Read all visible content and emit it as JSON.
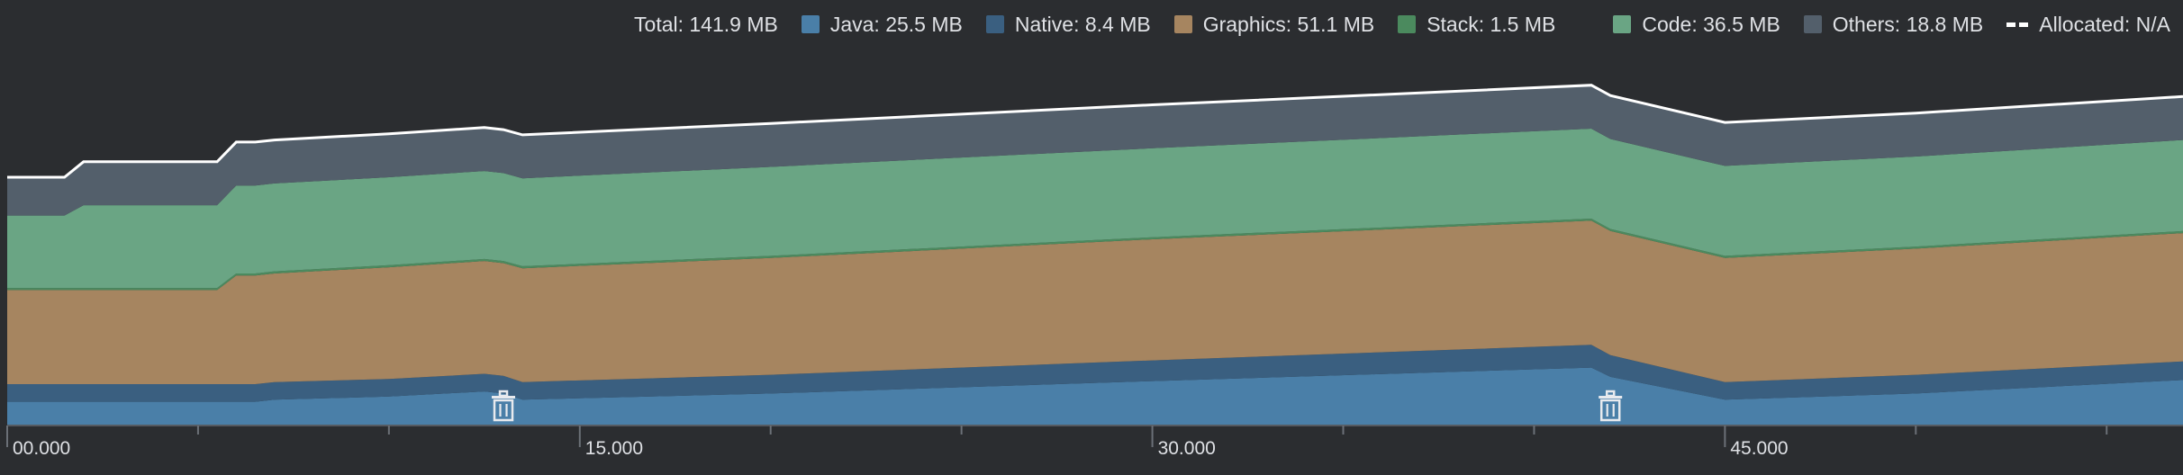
{
  "legend": {
    "total": "Total: 141.9 MB",
    "items": [
      {
        "key": "java",
        "label": "Java: 25.5 MB",
        "color": "#4a7fa8"
      },
      {
        "key": "native",
        "label": "Native: 8.4 MB",
        "color": "#3a5f80"
      },
      {
        "key": "graphics",
        "label": "Graphics: 51.1 MB",
        "color": "#a68560"
      },
      {
        "key": "stack",
        "label": "Stack: 1.5 MB",
        "color": "#4b8a5e"
      },
      {
        "key": "code",
        "label": "Code: 36.5 MB",
        "color": "#6aa584"
      },
      {
        "key": "others",
        "label": "Others: 18.8 MB",
        "color": "#535f6b"
      }
    ],
    "allocated": "Allocated: N/A"
  },
  "chart_data": {
    "type": "area",
    "stacked": true,
    "x_ticks": [
      "00.000",
      "15.000",
      "30.000",
      "45.000"
    ],
    "x_tick_values": [
      0,
      15,
      30,
      45
    ],
    "xlim": [
      0,
      57
    ],
    "x": [
      0,
      1.5,
      2,
      4.5,
      5,
      5.5,
      6,
      6.5,
      7,
      10,
      12.5,
      13,
      13.5,
      20,
      30,
      41.5,
      42,
      45,
      50,
      57
    ],
    "series": [
      {
        "name": "Java",
        "key": "java",
        "color": "#4a7fa8",
        "values": [
          23,
          23,
          23,
          23,
          23,
          23,
          23,
          23,
          25,
          28,
          33,
          31,
          25,
          31,
          43,
          56,
          47,
          25,
          31,
          44
        ]
      },
      {
        "name": "Native",
        "key": "native",
        "color": "#3a5f80",
        "values": [
          17,
          17,
          17,
          17,
          17,
          17,
          17,
          17,
          17,
          17,
          17,
          17,
          17,
          18,
          20,
          22,
          21,
          17,
          18,
          18
        ]
      },
      {
        "name": "Graphics",
        "key": "graphics",
        "color": "#a68560",
        "values": [
          91,
          91,
          91,
          91,
          91,
          91,
          105,
          105,
          105,
          108,
          109,
          109,
          110,
          113,
          117,
          120,
          120,
          120,
          122,
          124
        ]
      },
      {
        "name": "Stack",
        "key": "stack",
        "color": "#4b8a5e",
        "values": [
          2,
          2,
          2,
          2,
          2,
          2,
          2,
          2,
          2,
          2,
          2,
          2,
          2,
          2,
          2,
          2,
          2,
          2,
          2,
          2
        ]
      },
      {
        "name": "Code",
        "key": "code",
        "color": "#6aa584",
        "values": [
          70,
          70,
          80,
          80,
          80,
          80,
          85,
          85,
          85,
          85,
          85,
          85,
          85,
          86,
          86,
          87,
          87,
          87,
          87,
          88
        ]
      },
      {
        "name": "Others",
        "key": "others",
        "color": "#535f6b",
        "values": [
          37,
          37,
          42,
          42,
          42,
          42,
          42,
          42,
          42,
          42,
          42,
          42,
          42,
          42,
          42,
          42,
          42,
          42,
          42,
          42
        ]
      }
    ],
    "gc_events_x": [
      13,
      42
    ]
  }
}
